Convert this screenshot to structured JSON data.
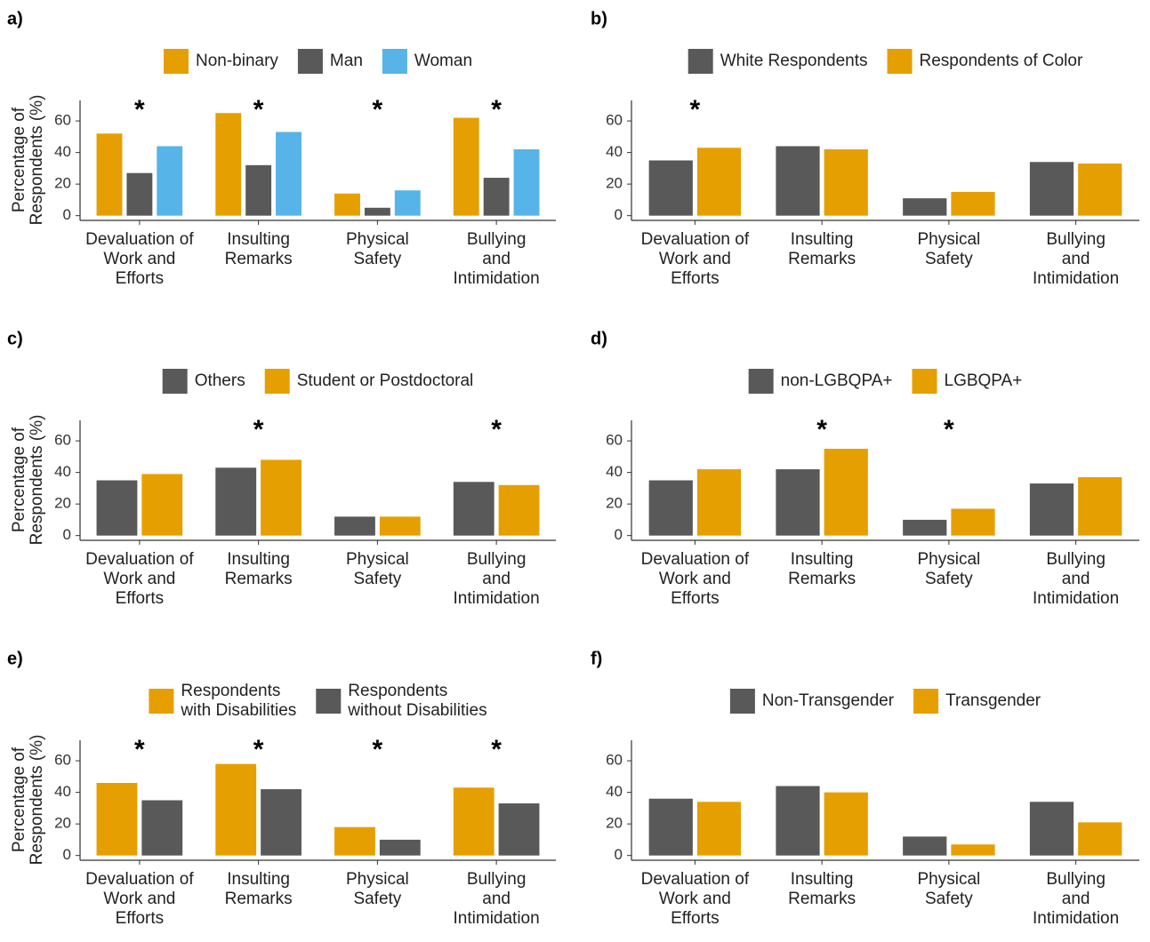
{
  "chart_data": [
    {
      "type": "bar",
      "label": "a)",
      "ylabel": [
        "Percentage of",
        "Respondents (%)"
      ],
      "categories": [
        [
          "Devaluation of",
          "Work and",
          "Efforts"
        ],
        [
          "Insulting",
          "Remarks"
        ],
        [
          "Physical",
          "Safety"
        ],
        [
          "Bullying",
          "and",
          "Intimidation"
        ]
      ],
      "significance": [
        "*",
        "*",
        "*",
        "*"
      ],
      "series": [
        {
          "name": [
            "Non-binary"
          ],
          "color": "#E69F00",
          "values": [
            52,
            65,
            14,
            62
          ]
        },
        {
          "name": [
            "Man"
          ],
          "color": "#595959",
          "values": [
            27,
            32,
            5,
            24
          ]
        },
        {
          "name": [
            "Woman"
          ],
          "color": "#56B4E9",
          "values": [
            44,
            53,
            16,
            42
          ]
        }
      ],
      "ylim": [
        -3,
        73
      ],
      "yticks": [
        0,
        20,
        40,
        60
      ]
    },
    {
      "type": "bar",
      "label": "b)",
      "categories": [
        [
          "Devaluation of",
          "Work and",
          "Efforts"
        ],
        [
          "Insulting",
          "Remarks"
        ],
        [
          "Physical",
          "Safety"
        ],
        [
          "Bullying",
          "and",
          "Intimidation"
        ]
      ],
      "significance": [
        "*",
        null,
        null,
        null
      ],
      "series": [
        {
          "name": [
            "White Respondents"
          ],
          "color": "#595959",
          "values": [
            35,
            44,
            11,
            34
          ]
        },
        {
          "name": [
            "Respondents of Color"
          ],
          "color": "#E69F00",
          "values": [
            43,
            42,
            15,
            33
          ]
        }
      ],
      "ylim": [
        -3,
        73
      ],
      "yticks": [
        0,
        20,
        40,
        60
      ]
    },
    {
      "type": "bar",
      "label": "c)",
      "ylabel": [
        "Percentage of",
        "Respondents (%)"
      ],
      "categories": [
        [
          "Devaluation of",
          "Work and",
          "Efforts"
        ],
        [
          "Insulting",
          "Remarks"
        ],
        [
          "Physical",
          "Safety"
        ],
        [
          "Bullying",
          "and",
          "Intimidation"
        ]
      ],
      "significance": [
        null,
        "*",
        null,
        "*"
      ],
      "series": [
        {
          "name": [
            "Others"
          ],
          "color": "#595959",
          "values": [
            35,
            43,
            12,
            34
          ]
        },
        {
          "name": [
            "Student or Postdoctoral"
          ],
          "color": "#E69F00",
          "values": [
            39,
            48,
            12,
            32
          ]
        }
      ],
      "ylim": [
        -3,
        73
      ],
      "yticks": [
        0,
        20,
        40,
        60
      ]
    },
    {
      "type": "bar",
      "label": "d)",
      "categories": [
        [
          "Devaluation of",
          "Work and",
          "Efforts"
        ],
        [
          "Insulting",
          "Remarks"
        ],
        [
          "Physical",
          "Safety"
        ],
        [
          "Bullying",
          "and",
          "Intimidation"
        ]
      ],
      "significance": [
        null,
        "*",
        "*",
        null
      ],
      "series": [
        {
          "name": [
            "non-LGBQPA+"
          ],
          "color": "#595959",
          "values": [
            35,
            42,
            10,
            33
          ]
        },
        {
          "name": [
            "LGBQPA+"
          ],
          "color": "#E69F00",
          "values": [
            42,
            55,
            17,
            37
          ]
        }
      ],
      "ylim": [
        -3,
        73
      ],
      "yticks": [
        0,
        20,
        40,
        60
      ]
    },
    {
      "type": "bar",
      "label": "e)",
      "ylabel": [
        "Percentage of",
        "Respondents (%)"
      ],
      "categories": [
        [
          "Devaluation of",
          "Work and",
          "Efforts"
        ],
        [
          "Insulting",
          "Remarks"
        ],
        [
          "Physical",
          "Safety"
        ],
        [
          "Bullying",
          "and",
          "Intimidation"
        ]
      ],
      "significance": [
        "*",
        "*",
        "*",
        "*"
      ],
      "series": [
        {
          "name": [
            "Respondents",
            "with Disabilities"
          ],
          "color": "#E69F00",
          "values": [
            46,
            58,
            18,
            43
          ]
        },
        {
          "name": [
            "Respondents",
            "without Disabilities"
          ],
          "color": "#595959",
          "values": [
            35,
            42,
            10,
            33
          ]
        }
      ],
      "ylim": [
        -3,
        73
      ],
      "yticks": [
        0,
        20,
        40,
        60
      ]
    },
    {
      "type": "bar",
      "label": "f)",
      "categories": [
        [
          "Devaluation of",
          "Work and",
          "Efforts"
        ],
        [
          "Insulting",
          "Remarks"
        ],
        [
          "Physical",
          "Safety"
        ],
        [
          "Bullying",
          "and",
          "Intimidation"
        ]
      ],
      "significance": [
        null,
        null,
        null,
        null
      ],
      "series": [
        {
          "name": [
            "Non-Transgender"
          ],
          "color": "#595959",
          "values": [
            36,
            44,
            12,
            34
          ]
        },
        {
          "name": [
            "Transgender"
          ],
          "color": "#E69F00",
          "values": [
            34,
            40,
            7,
            21
          ]
        }
      ],
      "ylim": [
        -3,
        73
      ],
      "yticks": [
        0,
        20,
        40,
        60
      ]
    }
  ]
}
